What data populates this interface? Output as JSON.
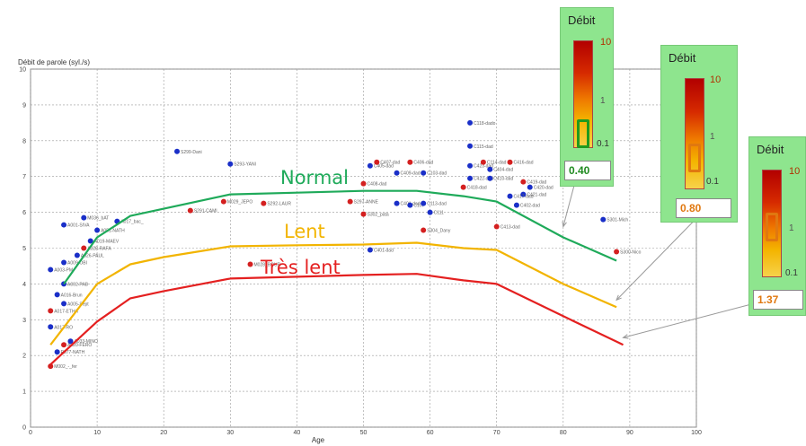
{
  "chart_data": {
    "type": "scatter",
    "title": "",
    "ylabel": "Débit de parole (syl./s)",
    "xlabel": "Age",
    "xlim": [
      0,
      100
    ],
    "ylim": [
      0,
      10
    ],
    "xticks": [
      0,
      10,
      20,
      30,
      40,
      50,
      60,
      70,
      80,
      90,
      100
    ],
    "yticks": [
      0,
      1,
      2,
      3,
      4,
      5,
      6,
      7,
      8,
      9,
      10
    ],
    "grid": true,
    "series": [
      {
        "name": "Normal",
        "type": "line",
        "color": "#1faa5a",
        "x": [
          5,
          10,
          15,
          20,
          30,
          40,
          50,
          58,
          65,
          70,
          80,
          88
        ],
        "y": [
          4.0,
          5.3,
          5.9,
          6.1,
          6.5,
          6.55,
          6.6,
          6.6,
          6.45,
          6.3,
          5.3,
          4.65
        ]
      },
      {
        "name": "Lent",
        "type": "line",
        "color": "#f2b400",
        "x": [
          3,
          10,
          15,
          20,
          30,
          40,
          50,
          58,
          65,
          70,
          80,
          88
        ],
        "y": [
          2.3,
          4.0,
          4.55,
          4.75,
          5.05,
          5.08,
          5.1,
          5.15,
          5.0,
          4.95,
          4.0,
          3.35
        ]
      },
      {
        "name": "Très lent",
        "type": "line",
        "color": "#e42020",
        "x": [
          3,
          10,
          15,
          20,
          30,
          40,
          50,
          58,
          65,
          70,
          80,
          89
        ],
        "y": [
          1.75,
          2.95,
          3.6,
          3.8,
          4.15,
          4.2,
          4.25,
          4.28,
          4.1,
          4.0,
          3.1,
          2.3
        ]
      }
    ],
    "points": [
      {
        "x": 3,
        "y": 1.7,
        "color": "#d42020",
        "label": "M002_-_fer"
      },
      {
        "x": 4,
        "y": 2.1,
        "color": "#1a2fc8",
        "label": "P077-NATH"
      },
      {
        "x": 5,
        "y": 2.3,
        "color": "#d42020",
        "label": "A020-FERO"
      },
      {
        "x": 6,
        "y": 2.4,
        "color": "#1a2fc8",
        "label": "A033-MINO"
      },
      {
        "x": 3,
        "y": 2.8,
        "color": "#1a2fc8",
        "label": "A017-RO"
      },
      {
        "x": 3,
        "y": 3.25,
        "color": "#d42020",
        "label": "A017-ETHA"
      },
      {
        "x": 5,
        "y": 3.45,
        "color": "#1a2fc8",
        "label": "A005-Sept"
      },
      {
        "x": 4,
        "y": 3.7,
        "color": "#1a2fc8",
        "label": "A016-Brun"
      },
      {
        "x": 5,
        "y": 4.0,
        "color": "#1a2fc8",
        "label": "A002-PAB"
      },
      {
        "x": 3,
        "y": 4.4,
        "color": "#1a2fc8",
        "label": "A003-PM"
      },
      {
        "x": 5,
        "y": 4.6,
        "color": "#1a2fc8",
        "label": "A009-OBI"
      },
      {
        "x": 7,
        "y": 4.8,
        "color": "#1a2fc8",
        "label": "A026-PAUL"
      },
      {
        "x": 8,
        "y": 5.0,
        "color": "#d42020",
        "label": "A028-RAFA"
      },
      {
        "x": 9,
        "y": 5.2,
        "color": "#1a2fc8",
        "label": "A019-MAEV"
      },
      {
        "x": 5,
        "y": 5.65,
        "color": "#1a2fc8",
        "label": "A001-SIVA"
      },
      {
        "x": 8,
        "y": 5.85,
        "color": "#1a2fc8",
        "label": "M036_bAT"
      },
      {
        "x": 10,
        "y": 5.5,
        "color": "#1a2fc8",
        "label": "A051-NATH"
      },
      {
        "x": 13,
        "y": 5.75,
        "color": "#1a2fc8",
        "label": "A017_bac_"
      },
      {
        "x": 22,
        "y": 7.7,
        "color": "#1a2fc8",
        "label": "S299-Dani"
      },
      {
        "x": 30,
        "y": 7.35,
        "color": "#1a2fc8",
        "label": "S293-YANI"
      },
      {
        "x": 24,
        "y": 6.05,
        "color": "#d42020",
        "label": "S291-CAMI"
      },
      {
        "x": 29,
        "y": 6.3,
        "color": "#d42020",
        "label": "M029_JEPO"
      },
      {
        "x": 35,
        "y": 6.25,
        "color": "#d42020",
        "label": "S292-LAUR"
      },
      {
        "x": 33,
        "y": 4.55,
        "color": "#d42020",
        "label": "M028_BOUR"
      },
      {
        "x": 48,
        "y": 6.3,
        "color": "#d42020",
        "label": "S297-ANNE"
      },
      {
        "x": 50,
        "y": 5.95,
        "color": "#d42020",
        "label": "S302_pata"
      },
      {
        "x": 50,
        "y": 6.8,
        "color": "#d42020",
        "label": "C408-dad"
      },
      {
        "x": 51,
        "y": 7.3,
        "color": "#1a2fc8",
        "label": "C405-dad"
      },
      {
        "x": 52,
        "y": 7.4,
        "color": "#d42020",
        "label": "C407-dad"
      },
      {
        "x": 55,
        "y": 7.1,
        "color": "#1a2fc8",
        "label": "C409-dad"
      },
      {
        "x": 57,
        "y": 7.4,
        "color": "#d42020",
        "label": "C406-dad"
      },
      {
        "x": 59,
        "y": 7.1,
        "color": "#1a2fc8",
        "label": "C103-dad"
      },
      {
        "x": 55,
        "y": 6.25,
        "color": "#1a2fc8",
        "label": "C401-dad"
      },
      {
        "x": 57,
        "y": 6.2,
        "color": "#1a2fc8",
        "label": "C107"
      },
      {
        "x": 59,
        "y": 6.25,
        "color": "#1a2fc8",
        "label": "C113-dad"
      },
      {
        "x": 60,
        "y": 6.0,
        "color": "#1a2fc8",
        "label": "C111"
      },
      {
        "x": 59,
        "y": 5.5,
        "color": "#d42020",
        "label": "S304_Dany"
      },
      {
        "x": 51,
        "y": 4.95,
        "color": "#1a2fc8",
        "label": "C401-dad"
      },
      {
        "x": 66,
        "y": 8.5,
        "color": "#1a2fc8",
        "label": "C118-dado"
      },
      {
        "x": 66,
        "y": 7.85,
        "color": "#1a2fc8",
        "label": "C115-dad"
      },
      {
        "x": 66,
        "y": 7.3,
        "color": "#1a2fc8",
        "label": "C423-dad"
      },
      {
        "x": 68,
        "y": 7.4,
        "color": "#d42020",
        "label": "C114-dad"
      },
      {
        "x": 69,
        "y": 7.2,
        "color": "#1a2fc8",
        "label": "C404-dad"
      },
      {
        "x": 66,
        "y": 6.95,
        "color": "#1a2fc8",
        "label": "C422-dad"
      },
      {
        "x": 69,
        "y": 6.95,
        "color": "#1a2fc8",
        "label": "C410-dad"
      },
      {
        "x": 72,
        "y": 7.4,
        "color": "#d42020",
        "label": "C416-dad"
      },
      {
        "x": 65,
        "y": 6.7,
        "color": "#d42020",
        "label": "C418-dad"
      },
      {
        "x": 74,
        "y": 6.85,
        "color": "#d42020",
        "label": "C419-dad"
      },
      {
        "x": 75,
        "y": 6.7,
        "color": "#1a2fc8",
        "label": "C420-dad"
      },
      {
        "x": 74,
        "y": 6.5,
        "color": "#1a2fc8",
        "label": "C421-dad"
      },
      {
        "x": 72,
        "y": 6.45,
        "color": "#1a2fc8",
        "label": "C417-dad"
      },
      {
        "x": 73,
        "y": 6.2,
        "color": "#1a2fc8",
        "label": "C402-dad"
      },
      {
        "x": 70,
        "y": 5.6,
        "color": "#d42020",
        "label": "C413-dad"
      },
      {
        "x": 86,
        "y": 5.8,
        "color": "#1a2fc8",
        "label": "S301-Mich"
      },
      {
        "x": 88,
        "y": 4.9,
        "color": "#d42020",
        "label": "S300-Nico"
      }
    ],
    "annotations": [
      "Normal",
      "Lent",
      "Très lent"
    ]
  },
  "cards": [
    {
      "title": "Débit",
      "top_label": "10",
      "mid_label": "1",
      "low_label": "0.1",
      "value": "0.40",
      "marker_color": "#1f9a1f",
      "value_color": "#1f8a1f",
      "marker_level": 0.13
    },
    {
      "title": "Débit",
      "top_label": "10",
      "mid_label": "1",
      "low_label": "0.1",
      "value": "0.80",
      "marker_color": "#e07810",
      "value_color": "#e07810",
      "marker_level": 0.28
    },
    {
      "title": "Débit",
      "top_label": "10",
      "mid_label": "1",
      "low_label": "0.1",
      "value": "1.37",
      "marker_color": "#e07810",
      "value_color": "#e07810",
      "marker_level": 0.47
    }
  ]
}
